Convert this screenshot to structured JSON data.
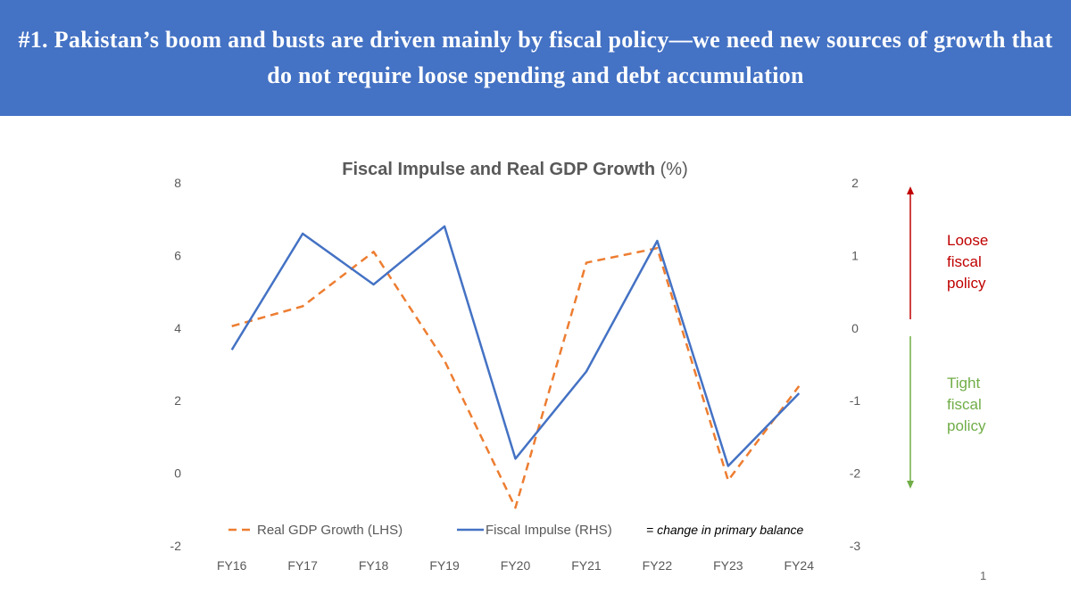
{
  "banner": {
    "title": "#1. Pakistan’s boom and busts are driven mainly by fiscal policy—we need new sources of growth that do not require loose spending and debt accumulation"
  },
  "colors": {
    "banner_bg": "#4472c4",
    "gdp_series": "#ed7d31",
    "fiscal_series": "#4472c4",
    "loose_color": "#c00000",
    "tight_color": "#70ad47"
  },
  "chart_data": {
    "type": "line",
    "title": "Fiscal Impulse and Real GDP Growth",
    "title_suffix": "(%)",
    "categories": [
      "FY16",
      "FY17",
      "FY18",
      "FY19",
      "FY20",
      "FY21",
      "FY22",
      "FY23",
      "FY24"
    ],
    "series": [
      {
        "name": "Real GDP Growth (LHS)",
        "axis": "left",
        "style": "dashed",
        "values": [
          4.05,
          4.6,
          6.1,
          3.1,
          -0.95,
          5.8,
          6.2,
          -0.2,
          2.4
        ]
      },
      {
        "name": "Fiscal Impulse (RHS)",
        "axis": "right",
        "style": "solid",
        "values": [
          -0.3,
          1.3,
          0.6,
          1.4,
          -1.8,
          -0.6,
          1.2,
          -1.9,
          -0.9
        ]
      }
    ],
    "y_left": {
      "min": -2,
      "max": 8,
      "ticks": [
        "8",
        "6",
        "4",
        "2",
        "0",
        "-2"
      ]
    },
    "y_right": {
      "min": -3,
      "max": 2,
      "ticks": [
        "2",
        "1",
        "0",
        "-1",
        "-2",
        "-3"
      ]
    },
    "legend_position": "bottom-left",
    "legend_note": "= change in primary balance",
    "gridlines": false
  },
  "annotations": {
    "loose": [
      "Loose",
      "fiscal",
      "policy"
    ],
    "tight": [
      "Tight",
      "fiscal",
      "policy"
    ]
  },
  "slide_number": "1"
}
